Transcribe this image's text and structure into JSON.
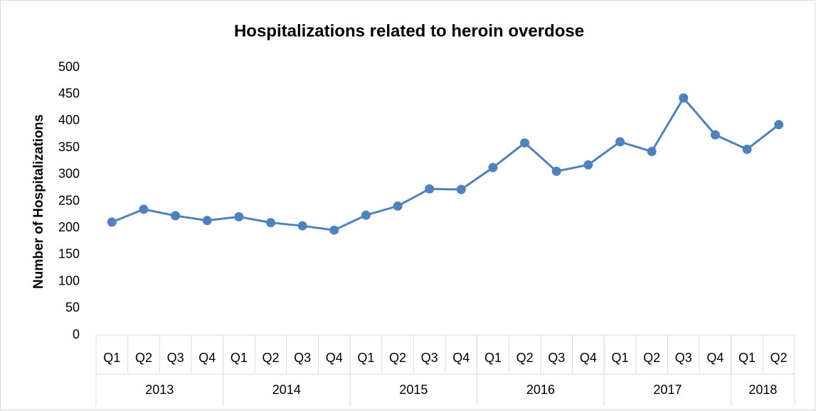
{
  "chart_data": {
    "type": "line",
    "title": "Hospitalizations related to heroin overdose",
    "y_label": "Number of Hospitalizations",
    "categories": [
      "Q1",
      "Q2",
      "Q3",
      "Q4",
      "Q1",
      "Q2",
      "Q3",
      "Q4",
      "Q1",
      "Q2",
      "Q3",
      "Q4",
      "Q1",
      "Q2",
      "Q3",
      "Q4",
      "Q1",
      "Q2",
      "Q3",
      "Q4",
      "Q1",
      "Q2"
    ],
    "groups": [
      {
        "label": "2013",
        "count": 4
      },
      {
        "label": "2014",
        "count": 4
      },
      {
        "label": "2015",
        "count": 4
      },
      {
        "label": "2016",
        "count": 4
      },
      {
        "label": "2017",
        "count": 4
      },
      {
        "label": "2018",
        "count": 2
      }
    ],
    "values": [
      211,
      235,
      223,
      214,
      221,
      210,
      204,
      196,
      224,
      241,
      273,
      272,
      313,
      359,
      306,
      318,
      361,
      343,
      443,
      374,
      347,
      393
    ],
    "color": "#4f81bd",
    "ylim": [
      0,
      500
    ],
    "yticks": [
      0,
      50,
      100,
      150,
      200,
      250,
      300,
      350,
      400,
      450,
      500
    ],
    "grid": false
  }
}
